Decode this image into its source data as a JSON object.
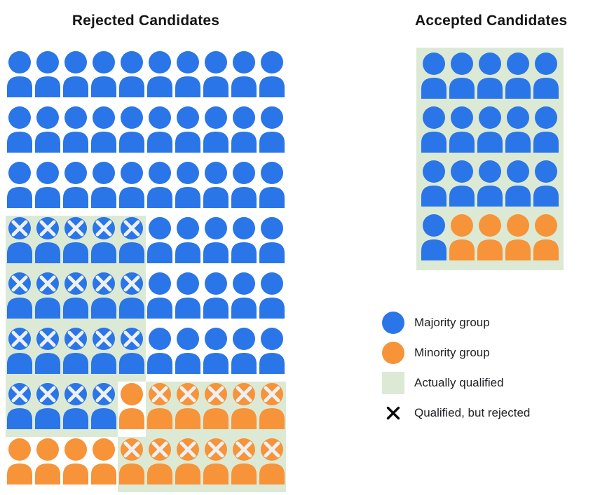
{
  "titles": {
    "rejected": "Rejected Candidates",
    "accepted": "Accepted Candidates"
  },
  "colors": {
    "majority_blue": "#2a75e8",
    "minority_orange": "#f79339",
    "qualified_green": "#dcead5",
    "icon_x_mark": "#edf1f4",
    "legend_x_mark": "#0b0b0b",
    "title_text": "#161616",
    "legend_text": "#202124",
    "background": "#ffffff"
  },
  "cell_code_key": {
    "b": "majority person, not marked",
    "B": "majority person, qualified (green background) with X mark",
    "o": "minority person, not marked",
    "O": "minority person, qualified (green background) with X mark"
  },
  "rejected_grid": {
    "columns": 10,
    "rows": [
      "bbbbbbbbbb",
      "bbbbbbbbbb",
      "bbbbbbbbbb",
      "BBBBBbbbbb",
      "BBBBBbbbbb",
      "BBBBBbbbbb",
      "BBBBoOOOOO",
      "ooooOOOOOO"
    ]
  },
  "accepted_grid": {
    "columns": 5,
    "all_qualified": true,
    "rows": [
      "bbbbb",
      "bbbbb",
      "bbbbb",
      "boooo"
    ]
  },
  "counts": {
    "rejected": {
      "total": 80,
      "majority": 64,
      "minority": 16,
      "qualified_but_rejected_majority": 19,
      "qualified_but_rejected_minority": 11
    },
    "accepted": {
      "total": 20,
      "majority": 16,
      "minority": 4
    }
  },
  "legend": {
    "items": [
      {
        "swatch": "circle-majority",
        "label": "Majority group"
      },
      {
        "swatch": "circle-minority",
        "label": "Minority group"
      },
      {
        "swatch": "square-qualified",
        "label": "Actually qualified"
      },
      {
        "swatch": "x-mark",
        "label": "Qualified, but rejected"
      }
    ]
  }
}
